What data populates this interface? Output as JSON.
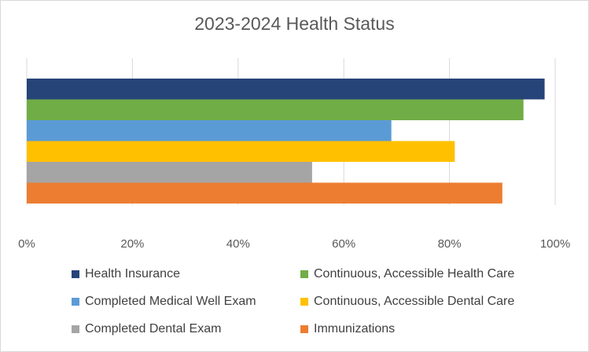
{
  "chart_data": {
    "type": "bar",
    "orientation": "horizontal",
    "title": "2023-2024 Health Status",
    "xlabel": "",
    "ylabel": "",
    "xlim": [
      0,
      100
    ],
    "x_ticks": [
      "0%",
      "20%",
      "40%",
      "60%",
      "80%",
      "100%"
    ],
    "grid": "vertical",
    "legend_position": "bottom",
    "series": [
      {
        "name": "Health Insurance",
        "value": 98,
        "color": "#264478"
      },
      {
        "name": "Continuous, Accessible Health Care",
        "value": 94,
        "color": "#70ad47"
      },
      {
        "name": "Completed Medical Well Exam",
        "value": 69,
        "color": "#5b9bd5"
      },
      {
        "name": "Continuous, Accessible Dental Care",
        "value": 81,
        "color": "#ffc000"
      },
      {
        "name": "Completed Dental Exam",
        "value": 54,
        "color": "#a5a5a5"
      },
      {
        "name": "Immunizations",
        "value": 90,
        "color": "#ed7d31"
      }
    ]
  }
}
